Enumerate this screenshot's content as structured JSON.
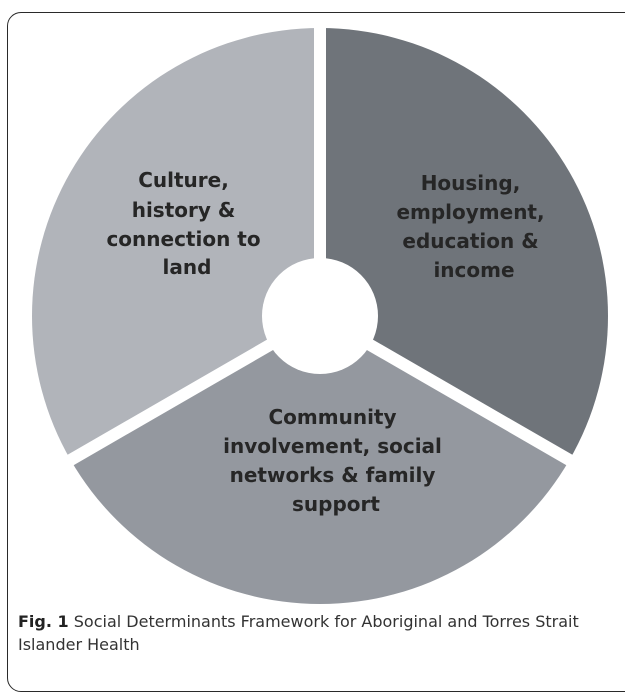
{
  "diagram": {
    "segments": [
      {
        "id": "housing",
        "lines": [
          "Housing,",
          "employment,",
          "education &",
          "income"
        ],
        "color": "#6f747a"
      },
      {
        "id": "community",
        "lines": [
          "Community",
          "involvement, social",
          "networks & family",
          "support"
        ],
        "color": "#94989f"
      },
      {
        "id": "culture",
        "lines": [
          "Culture,",
          "history &",
          "connection to",
          "land"
        ],
        "color": "#b1b4ba"
      }
    ],
    "hub_color": "#ffffff",
    "gap_color": "#ffffff"
  },
  "caption": {
    "label": "Fig. 1",
    "text": "Social Determinants Framework for Aboriginal and Torres Strait Islander Health"
  }
}
